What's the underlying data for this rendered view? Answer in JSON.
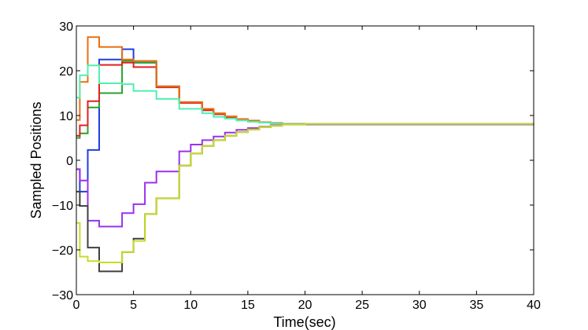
{
  "chart_data": {
    "type": "line",
    "step": true,
    "xlabel": "Time(sec)",
    "ylabel": "Sampled Positions",
    "xlim": [
      0,
      40
    ],
    "ylim": [
      -30,
      30
    ],
    "xticks": [
      0,
      5,
      10,
      15,
      20,
      25,
      30,
      35,
      40
    ],
    "yticks": [
      -30,
      -20,
      -10,
      0,
      10,
      20,
      30
    ],
    "grid": false,
    "legend": "none",
    "series": [
      {
        "color": "#1f3fe0",
        "x": [
          0,
          0.3,
          1,
          2,
          4,
          5,
          7,
          9,
          11,
          12,
          13,
          14,
          15,
          16,
          17,
          18,
          20,
          40
        ],
        "y": [
          -2,
          -7,
          2.3,
          22.5,
          24.8,
          21.8,
          16.5,
          12.8,
          11.2,
          10.3,
          9.7,
          9.2,
          8.8,
          8.5,
          8.3,
          8.1,
          8.0,
          8.0
        ]
      },
      {
        "color": "#2ca02c",
        "x": [
          0,
          0.3,
          1,
          2,
          4,
          5,
          7,
          9,
          11,
          12,
          13,
          14,
          15,
          16,
          17,
          18,
          20,
          40
        ],
        "y": [
          5,
          6,
          11.8,
          15,
          22.2,
          21.8,
          16.5,
          12.8,
          11.2,
          10.3,
          9.7,
          9.2,
          8.8,
          8.5,
          8.3,
          8.1,
          8.0,
          8.0
        ]
      },
      {
        "color": "#e02020",
        "x": [
          0,
          0.3,
          1,
          2,
          4,
          5,
          7,
          9,
          11,
          12,
          13,
          14,
          15,
          16,
          17,
          18,
          20,
          40
        ],
        "y": [
          5.5,
          7.8,
          13.2,
          21.3,
          21.8,
          20.8,
          16.3,
          12.8,
          11.2,
          10.3,
          9.7,
          9.2,
          8.8,
          8.5,
          8.3,
          8.1,
          8.0,
          8.0
        ]
      },
      {
        "color": "#e87010",
        "x": [
          0,
          0.3,
          1,
          2,
          4,
          5,
          7,
          9,
          11,
          12,
          13,
          14,
          15,
          16,
          17,
          18,
          20,
          40
        ],
        "y": [
          9,
          17.5,
          27.5,
          25.3,
          22.5,
          22.2,
          16.5,
          13,
          11.5,
          10.5,
          9.8,
          9.2,
          8.8,
          8.5,
          8.3,
          8.1,
          8.0,
          8.0
        ]
      },
      {
        "color": "#50f0b0",
        "x": [
          0,
          0.3,
          1,
          2,
          4,
          5,
          7,
          9,
          11,
          12,
          13,
          14,
          15,
          16,
          17,
          18,
          20,
          40
        ],
        "y": [
          14,
          19,
          21.2,
          17.2,
          17,
          15.5,
          13.7,
          11.5,
          10.5,
          9.7,
          9.3,
          8.9,
          8.6,
          8.4,
          8.2,
          8.1,
          8.0,
          8.0
        ]
      },
      {
        "color": "#9b30f0",
        "x": [
          0,
          0.3,
          1,
          2,
          3,
          4,
          5,
          6,
          7,
          9,
          10,
          11,
          12,
          13,
          14,
          15,
          16,
          17,
          18,
          20,
          40
        ],
        "y": [
          -2,
          -4.5,
          -13.5,
          -14.8,
          -14.8,
          -11.8,
          -9.8,
          -5,
          -2.5,
          2,
          3.5,
          4.5,
          5.3,
          6.2,
          6.8,
          7.2,
          7.5,
          7.8,
          8.0,
          8.0,
          8.0
        ]
      },
      {
        "color": "#404040",
        "x": [
          0,
          0.3,
          1,
          2,
          3,
          4,
          5,
          6,
          7,
          9,
          10,
          11,
          12,
          13,
          14,
          15,
          16,
          17,
          18,
          20,
          40
        ],
        "y": [
          -7,
          -10.2,
          -19.5,
          -24.8,
          -24.8,
          -20.5,
          -17.5,
          -12,
          -8.5,
          -1.2,
          1.5,
          3.2,
          4.5,
          5.5,
          6.3,
          6.9,
          7.4,
          7.7,
          8.0,
          8.1,
          8.0
        ]
      },
      {
        "color": "#c8dc28",
        "x": [
          0,
          0.3,
          1,
          2,
          3,
          4,
          5,
          6,
          7,
          9,
          10,
          11,
          12,
          13,
          14,
          15,
          16,
          17,
          18,
          20,
          40
        ],
        "y": [
          -14,
          -21.5,
          -22.5,
          -22.8,
          -22.8,
          -20.5,
          -18,
          -12,
          -8.5,
          -1.2,
          1.5,
          3.2,
          4.5,
          5.5,
          6.3,
          6.9,
          7.4,
          7.7,
          8.0,
          8.1,
          8.0
        ]
      }
    ]
  }
}
